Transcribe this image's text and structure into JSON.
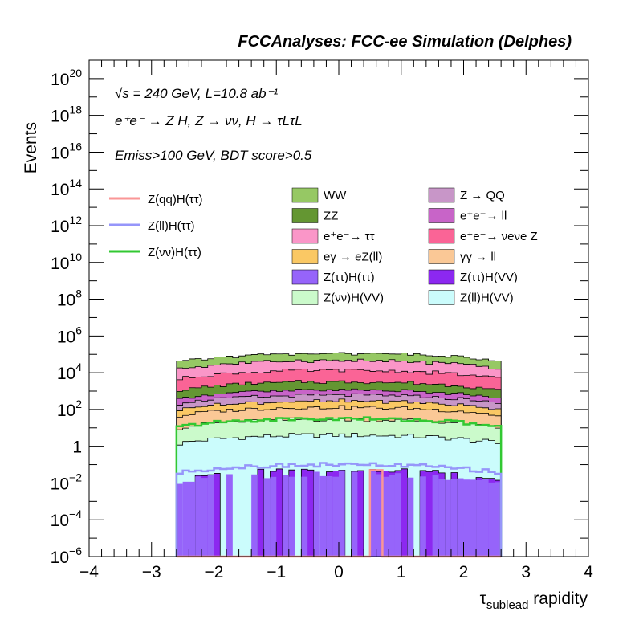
{
  "chart_data": {
    "type": "area",
    "title": "FCCAnalyses: FCC-ee Simulation (Delphes)",
    "xlabel": "τsublead rapidity",
    "xlabel_main": "τ",
    "xlabel_sub": "sublead",
    "xlabel_rest": " rapidity",
    "ylabel": "Events",
    "y_log_scale": true,
    "xlim": [
      -4,
      4
    ],
    "ylim_exponent": [
      -6,
      21
    ],
    "x_ticks": [
      "−4",
      "−3",
      "−2",
      "−1",
      "0",
      "1",
      "2",
      "3",
      "4"
    ],
    "y_ticks": [
      {
        "exp": -6,
        "base": "10",
        "sup": "−6"
      },
      {
        "exp": -4,
        "base": "10",
        "sup": "−4"
      },
      {
        "exp": -2,
        "base": "10",
        "sup": "−2"
      },
      {
        "exp": 0,
        "base": "1",
        "sup": ""
      },
      {
        "exp": 2,
        "base": "10",
        "sup": "2"
      },
      {
        "exp": 4,
        "base": "10",
        "sup": "4"
      },
      {
        "exp": 6,
        "base": "10",
        "sup": "6"
      },
      {
        "exp": 8,
        "base": "10",
        "sup": "8"
      },
      {
        "exp": 10,
        "base": "10",
        "sup": "10"
      },
      {
        "exp": 12,
        "base": "10",
        "sup": "12"
      },
      {
        "exp": 14,
        "base": "10",
        "sup": "14"
      },
      {
        "exp": 16,
        "base": "10",
        "sup": "16"
      },
      {
        "exp": 18,
        "base": "10",
        "sup": "18"
      },
      {
        "exp": 20,
        "base": "10",
        "sup": "20"
      }
    ],
    "annotations": {
      "energy": "√s = 240 GeV, L=10.8 ab⁻¹",
      "process": "e⁺e⁻ → Z H, Z → νν, H → τLτL",
      "cuts": "Emiss>100 GeV, BDT score>0.5"
    },
    "x_range_populated": [
      -2.6,
      2.6
    ],
    "stacked_series": [
      {
        "name": "Z(ττ)H(VV)",
        "color": "#8c28f0",
        "peak_log10": -1.3
      },
      {
        "name": "Z(ll)H(VV)",
        "color": "#cbfcfc",
        "peak_log10": 0.6
      },
      {
        "name": "Z(νν)H(VV)",
        "color": "#cbfacb",
        "peak_log10": 1.4
      },
      {
        "name": "γγ → ll",
        "color": "#fac896",
        "peak_log10": 2.0
      },
      {
        "name": "eγ → eZ(ll)",
        "color": "#fac864",
        "peak_log10": 2.2
      },
      {
        "name": "Z → QQ",
        "color": "#c896c8",
        "peak_log10": 2.5
      },
      {
        "name": "e⁺e⁻ → ll",
        "color": "#c864c8",
        "peak_log10": 2.7
      },
      {
        "name": "ZZ",
        "color": "#649632",
        "peak_log10": 3.3
      },
      {
        "name": "e⁺e⁻ → νeνe Z",
        "color": "#fa6496",
        "peak_log10": 4.0
      },
      {
        "name": "e⁺e⁻ → ττ",
        "color": "#fa96c8",
        "peak_log10": 4.5
      },
      {
        "name": "WW",
        "color": "#96c864",
        "peak_log10": 4.8
      }
    ],
    "overlay_series": [
      {
        "name": "Z(ττ)H(ττ)",
        "color": "#9664fa",
        "style": "filled-sparse",
        "peak_log10": -1.5
      },
      {
        "name": "Z(νν)H(ττ)",
        "color": "#32c832",
        "style": "line",
        "peak_log10": 1.5
      },
      {
        "name": "Z(ll)H(ττ)",
        "color": "#9696fa",
        "style": "line",
        "peak_log10": -1.0
      },
      {
        "name": "Z(qq)H(ττ)",
        "color": "#fa9696",
        "style": "line",
        "peak_log10": -1.3
      }
    ]
  },
  "legend": {
    "left": [
      "Z(qq)H(ττ)",
      "Z(ll)H(ττ)",
      "Z(νν)H(ττ)"
    ],
    "left_colors": [
      "#fa9696",
      "#9696fa",
      "#32c832"
    ],
    "mid": [
      "WW",
      "ZZ",
      "e⁺e⁻→ ττ",
      "eγ → eZ(ll)",
      "Z(ττ)H(ττ)",
      "Z(νν)H(VV)"
    ],
    "mid_colors": [
      "#96c864",
      "#649632",
      "#fa96c8",
      "#fac864",
      "#9664fa",
      "#cbfacb"
    ],
    "right": [
      "Z → QQ",
      "e⁺e⁻→ ll",
      "e⁺e⁻→ νeνe Z",
      "γγ → ll",
      "Z(ττ)H(VV)",
      "Z(ll)H(VV)"
    ],
    "right_colors": [
      "#c896c8",
      "#c864c8",
      "#fa6496",
      "#fac896",
      "#8c28f0",
      "#cbfcfc"
    ]
  }
}
